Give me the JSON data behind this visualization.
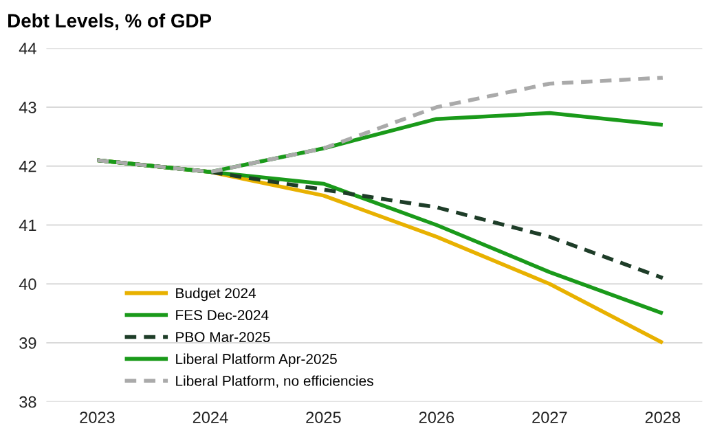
{
  "chart_data": {
    "type": "line",
    "title": "Debt Levels, % of GDP",
    "categories": [
      "2023",
      "2024",
      "2025",
      "2026",
      "2027",
      "2028"
    ],
    "ylim": [
      38,
      44
    ],
    "yticks": [
      38,
      39,
      40,
      41,
      42,
      43,
      44
    ],
    "grid": "y",
    "legend": "bottom left",
    "series": [
      {
        "name": "Budget 2024",
        "color": "#e8b100",
        "line_style": "solid",
        "values": [
          42.1,
          41.9,
          41.5,
          40.8,
          40.0,
          39.0
        ]
      },
      {
        "name": "FES Dec-2024",
        "color": "#1a9a1a",
        "line_style": "solid",
        "values": [
          42.1,
          41.9,
          41.7,
          41.0,
          40.2,
          39.5
        ]
      },
      {
        "name": "PBO Mar-2025",
        "color": "#1e3d28",
        "line_style": "dashed",
        "values": [
          42.1,
          41.9,
          41.6,
          41.3,
          40.8,
          40.1
        ]
      },
      {
        "name": "Liberal Platform Apr-2025",
        "color": "#1a9a1a",
        "line_style": "solid",
        "values": [
          42.1,
          41.9,
          42.3,
          42.8,
          42.9,
          42.7
        ]
      },
      {
        "name": "Liberal Platform, no efficiencies",
        "color": "#aaaaaa",
        "line_style": "dashed",
        "values": [
          42.1,
          41.9,
          42.3,
          43.0,
          43.4,
          43.5
        ]
      }
    ]
  }
}
